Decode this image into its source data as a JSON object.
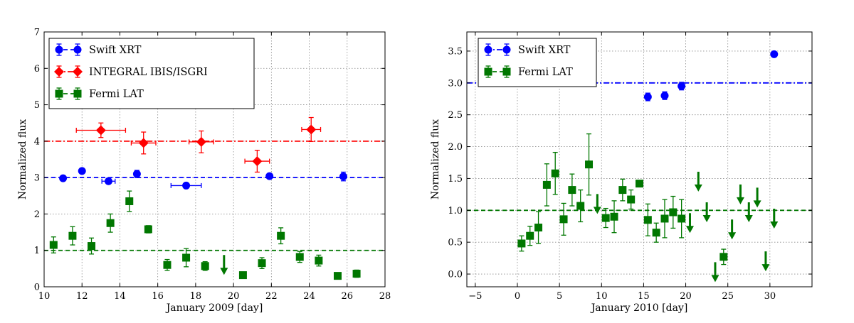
{
  "chart_data": [
    {
      "type": "scatter",
      "xlabel": "January 2009 [day]",
      "ylabel": "Normalized flux",
      "xlim": [
        10,
        28
      ],
      "ylim": [
        0,
        7
      ],
      "xticks": [
        10,
        12,
        14,
        16,
        18,
        20,
        22,
        24,
        26,
        28
      ],
      "yticks": [
        0,
        1,
        2,
        3,
        4,
        5,
        6,
        7
      ],
      "grid": true,
      "legend_position": "top-left",
      "series": [
        {
          "name": "Swift XRT",
          "color": "#0000ff",
          "marker": "circle",
          "baseline": 3.0,
          "points": [
            {
              "x": 11.0,
              "y": 2.98,
              "yerr": 0.05
            },
            {
              "x": 12.0,
              "y": 3.18,
              "yerr": 0.06
            },
            {
              "x": 13.4,
              "y": 2.9,
              "xerr": 0.35,
              "yerr": 0.06
            },
            {
              "x": 14.9,
              "y": 3.1,
              "yerr": 0.1
            },
            {
              "x": 17.5,
              "y": 2.78,
              "xerr": 0.8,
              "yerr": 0.05
            },
            {
              "x": 21.9,
              "y": 3.04,
              "yerr": 0.05
            },
            {
              "x": 25.8,
              "y": 3.03,
              "yerr": 0.12
            }
          ]
        },
        {
          "name": "INTEGRAL IBIS/ISGRI",
          "color": "#ff0000",
          "marker": "diamond",
          "baseline": 4.0,
          "points": [
            {
              "x": 13.0,
              "y": 4.3,
              "xerr": 1.3,
              "yerr": 0.2
            },
            {
              "x": 15.25,
              "y": 3.95,
              "xerr": 0.65,
              "yerr": 0.3
            },
            {
              "x": 18.3,
              "y": 3.98,
              "xerr": 0.65,
              "yerr": 0.3
            },
            {
              "x": 21.25,
              "y": 3.45,
              "xerr": 0.65,
              "yerr": 0.3
            },
            {
              "x": 24.1,
              "y": 4.32,
              "xerr": 0.5,
              "yerr": 0.33
            }
          ]
        },
        {
          "name": "Fermi LAT",
          "color": "#007700",
          "marker": "square",
          "baseline": 1.0,
          "points": [
            {
              "x": 10.5,
              "y": 1.15,
              "yerr": 0.22
            },
            {
              "x": 11.5,
              "y": 1.4,
              "yerr": 0.25
            },
            {
              "x": 12.5,
              "y": 1.12,
              "yerr": 0.22
            },
            {
              "x": 13.5,
              "y": 1.75,
              "yerr": 0.25
            },
            {
              "x": 14.5,
              "y": 2.35,
              "yerr": 0.28
            },
            {
              "x": 15.5,
              "y": 1.58,
              "yerr": 0.1
            },
            {
              "x": 16.5,
              "y": 0.6,
              "yerr": 0.15
            },
            {
              "x": 17.5,
              "y": 0.8,
              "yerr": 0.25
            },
            {
              "x": 18.5,
              "y": 0.57,
              "yerr": 0.12
            },
            {
              "x": 20.5,
              "y": 0.32,
              "yerr": 0.05
            },
            {
              "x": 21.5,
              "y": 0.65,
              "yerr": 0.15
            },
            {
              "x": 22.5,
              "y": 1.4,
              "yerr": 0.22
            },
            {
              "x": 23.5,
              "y": 0.82,
              "yerr": 0.15
            },
            {
              "x": 24.5,
              "y": 0.72,
              "yerr": 0.15
            },
            {
              "x": 25.5,
              "y": 0.3,
              "yerr": 0.05
            },
            {
              "x": 26.5,
              "y": 0.36,
              "yerr": 0.1
            }
          ],
          "upper_limits": [
            {
              "x": 19.5,
              "y": 0.6
            }
          ]
        }
      ]
    },
    {
      "type": "scatter",
      "xlabel": "January 2010 [day]",
      "ylabel": "Normalized flux",
      "xlim": [
        -6,
        35
      ],
      "ylim": [
        -0.2,
        3.8
      ],
      "xticks": [
        -5,
        0,
        5,
        10,
        15,
        20,
        25,
        30
      ],
      "xtick_labels": [
        "−5",
        "0",
        "5",
        "10",
        "15",
        "20",
        "25",
        "30"
      ],
      "yticks": [
        0.0,
        0.5,
        1.0,
        1.5,
        2.0,
        2.5,
        3.0,
        3.5
      ],
      "ytick_labels": [
        "0.0",
        "0.5",
        "1.0",
        "1.5",
        "2.0",
        "2.5",
        "3.0",
        "3.5"
      ],
      "grid": true,
      "legend_position": "top-left",
      "series": [
        {
          "name": "Swift XRT",
          "color": "#0000ff",
          "marker": "circle",
          "baseline": 3.0,
          "points": [
            {
              "x": 15.5,
              "y": 2.78,
              "yerr": 0.06
            },
            {
              "x": 17.5,
              "y": 2.8,
              "yerr": 0.06
            },
            {
              "x": 19.5,
              "y": 2.95,
              "yerr": 0.06
            },
            {
              "x": 30.5,
              "y": 3.45,
              "yerr": 0.03
            }
          ]
        },
        {
          "name": "Fermi LAT",
          "color": "#007700",
          "marker": "square",
          "baseline": 1.0,
          "points": [
            {
              "x": 0.5,
              "y": 0.48,
              "yerr": 0.12
            },
            {
              "x": 1.5,
              "y": 0.6,
              "yerr": 0.15
            },
            {
              "x": 2.5,
              "y": 0.73,
              "yerr": 0.25
            },
            {
              "x": 3.5,
              "y": 1.4,
              "yerr": 0.33
            },
            {
              "x": 4.5,
              "y": 1.58,
              "yerr": 0.33
            },
            {
              "x": 5.5,
              "y": 0.86,
              "yerr": 0.25
            },
            {
              "x": 6.5,
              "y": 1.32,
              "yerr": 0.25
            },
            {
              "x": 7.5,
              "y": 1.07,
              "yerr": 0.25
            },
            {
              "x": 8.5,
              "y": 1.72,
              "yerr": 0.48
            },
            {
              "x": 10.5,
              "y": 0.88,
              "yerr": 0.15
            },
            {
              "x": 11.5,
              "y": 0.9,
              "yerr": 0.25
            },
            {
              "x": 12.5,
              "y": 1.32,
              "yerr": 0.17
            },
            {
              "x": 13.5,
              "y": 1.17,
              "yerr": 0.15
            },
            {
              "x": 14.5,
              "y": 1.42,
              "yerr": 0.03
            },
            {
              "x": 15.5,
              "y": 0.85,
              "yerr": 0.25
            },
            {
              "x": 16.5,
              "y": 0.65,
              "yerr": 0.15
            },
            {
              "x": 17.5,
              "y": 0.87,
              "yerr": 0.3
            },
            {
              "x": 18.5,
              "y": 0.97,
              "yerr": 0.25
            },
            {
              "x": 19.5,
              "y": 0.87,
              "yerr": 0.3
            },
            {
              "x": 24.5,
              "y": 0.27,
              "yerr": 0.12
            }
          ],
          "upper_limits": [
            {
              "x": 9.5,
              "y": 1.1
            },
            {
              "x": 20.5,
              "y": 0.8
            },
            {
              "x": 21.5,
              "y": 1.45
            },
            {
              "x": 22.5,
              "y": 0.97
            },
            {
              "x": 23.5,
              "y": 0.03
            },
            {
              "x": 25.5,
              "y": 0.7
            },
            {
              "x": 26.5,
              "y": 1.25
            },
            {
              "x": 27.5,
              "y": 0.97
            },
            {
              "x": 28.5,
              "y": 1.2
            },
            {
              "x": 29.5,
              "y": 0.2
            },
            {
              "x": 30.5,
              "y": 0.87
            }
          ]
        }
      ]
    }
  ]
}
